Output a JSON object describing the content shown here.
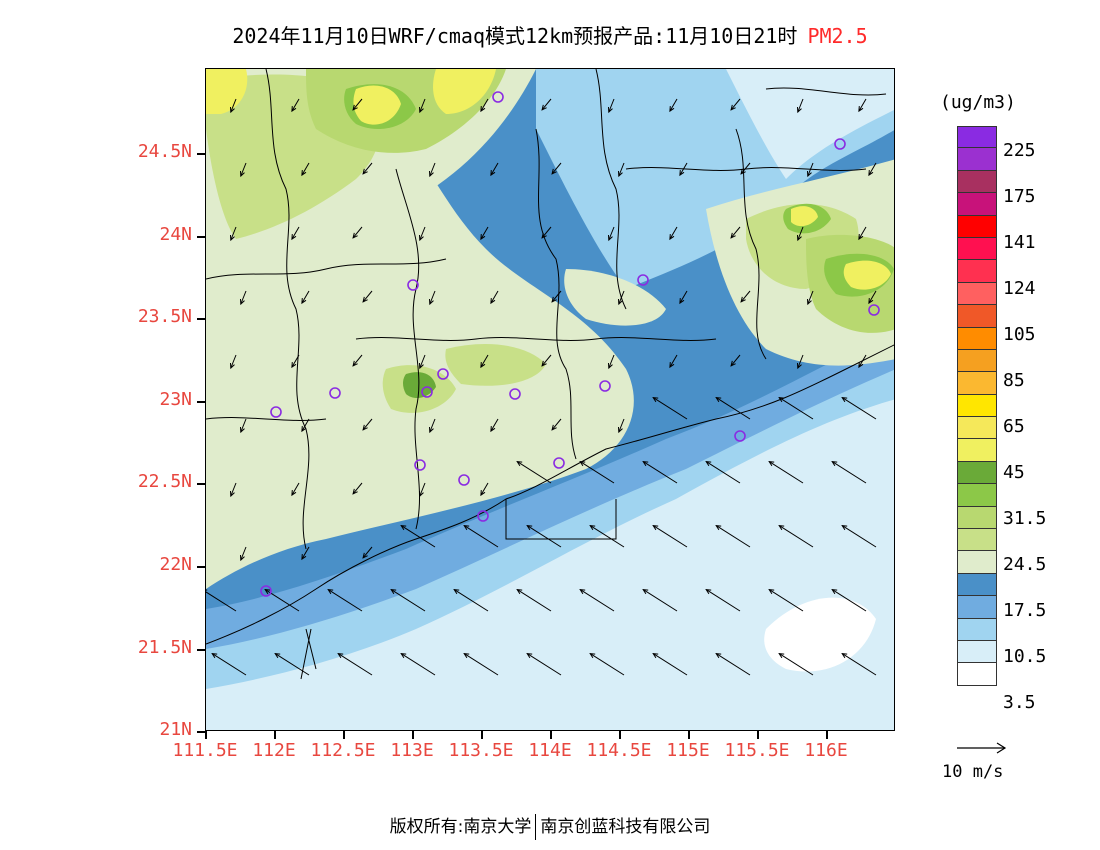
{
  "title": {
    "main": "2024年11月10日WRF/cmaq模式12km预报产品:11月10日21时",
    "species": "PM2.5"
  },
  "map": {
    "lat_labels": [
      "24.5N",
      "24N",
      "23.5N",
      "23N",
      "22.5N",
      "22N",
      "21.5N",
      "21N"
    ],
    "lon_labels": [
      "111.5E",
      "112E",
      "112.5E",
      "113E",
      "113.5E",
      "114E",
      "114.5E",
      "115E",
      "115.5E",
      "116E"
    ],
    "station_marker_color": "#8a2be2"
  },
  "legend": {
    "unit": "(ug/m3)",
    "colors": [
      "#8a2be2",
      "#9b30d0",
      "#a83060",
      "#c8127a",
      "#ff0000",
      "#ff1050",
      "#ff3050",
      "#ff6060",
      "#f05828",
      "#ff8c00",
      "#f5a020",
      "#fbb830",
      "#ffe600",
      "#f5e85a",
      "#f0f060",
      "#6aaa38",
      "#8cc848",
      "#b8d870",
      "#c8e088",
      "#e0eccc",
      "#4a90c8",
      "#70ace0",
      "#a0d4f0",
      "#d8eef8",
      "#ffffff"
    ],
    "labels": [
      "225",
      "175",
      "141",
      "124",
      "105",
      "85",
      "65",
      "45",
      "31.5",
      "24.5",
      "17.5",
      "10.5",
      "3.5"
    ]
  },
  "wind_reference": {
    "label": "10 m/s"
  },
  "footer": {
    "left": "版权所有:南京大学",
    "right": "南京创蓝科技有限公司"
  }
}
